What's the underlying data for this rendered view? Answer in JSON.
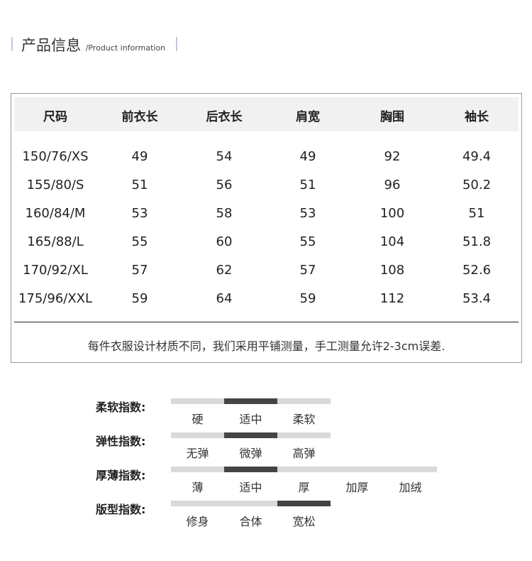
{
  "header": {
    "title_cn": "产品信息",
    "title_en": "/Product information"
  },
  "size_table": {
    "columns": [
      "尺码",
      "前衣长",
      "后衣长",
      "肩宽",
      "胸围",
      "袖长"
    ],
    "rows": [
      [
        "150/76/XS",
        "49",
        "54",
        "49",
        "92",
        "49.4"
      ],
      [
        "155/80/S",
        "51",
        "56",
        "51",
        "96",
        "50.2"
      ],
      [
        "160/84/M",
        "53",
        "58",
        "53",
        "100",
        "51"
      ],
      [
        "165/88/L",
        "55",
        "60",
        "55",
        "104",
        "51.8"
      ],
      [
        "170/92/XL",
        "57",
        "62",
        "57",
        "108",
        "52.6"
      ],
      [
        "175/96/XXL",
        "59",
        "64",
        "59",
        "112",
        "53.4"
      ]
    ],
    "note": "每件衣服设计材质不同，我们采用平铺测量，手工测量允许2-3cm误差."
  },
  "indices": [
    {
      "label": "柔软指数:",
      "options": [
        "硬",
        "适中",
        "柔软"
      ],
      "selected": 1
    },
    {
      "label": "弹性指数:",
      "options": [
        "无弹",
        "微弹",
        "高弹"
      ],
      "selected": 1
    },
    {
      "label": "厚薄指数:",
      "options": [
        "薄",
        "适中",
        "厚",
        "加厚",
        "加绒"
      ],
      "selected": 1
    },
    {
      "label": "版型指数:",
      "options": [
        "修身",
        "合体",
        "宽松"
      ],
      "selected": 2
    }
  ],
  "colors": {
    "selected": "#444444",
    "unselected": "#d9d9d9",
    "accent_bar": "#c9c6dc"
  }
}
